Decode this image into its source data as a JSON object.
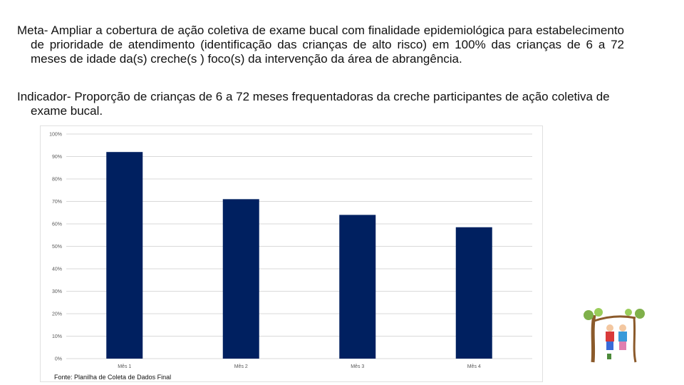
{
  "meta_text": "Meta- Ampliar a cobertura de ação coletiva de exame bucal com finalidade epidemiológica para estabelecimento de prioridade de atendimento (identificação das crianças de alto risco) em 100% das crianças de 6 a 72 meses de idade da(s) creche(s ) foco(s) da intervenção da área de abrangência.",
  "indicator_text": "Indicador- Proporção de crianças  de 6 a 72 meses frequentadoras da creche participantes de ação coletiva de exame bucal.",
  "source_text": "Fonte: Planilha de Coleta de Dados Final",
  "colors": {
    "bar": "#002060",
    "grid": "#d9d9d9"
  },
  "chart_data": {
    "type": "bar",
    "categories": [
      "Mês 1",
      "Mês 2",
      "Mês 3",
      "Mês 4"
    ],
    "values": [
      92,
      71,
      64,
      58.5
    ],
    "y_ticks": [
      "0%",
      "10%",
      "20%",
      "30%",
      "40%",
      "50%",
      "60%",
      "70%",
      "80%",
      "90%",
      "100%"
    ],
    "ylim": [
      0,
      100
    ],
    "grid": true,
    "legend": "none"
  }
}
